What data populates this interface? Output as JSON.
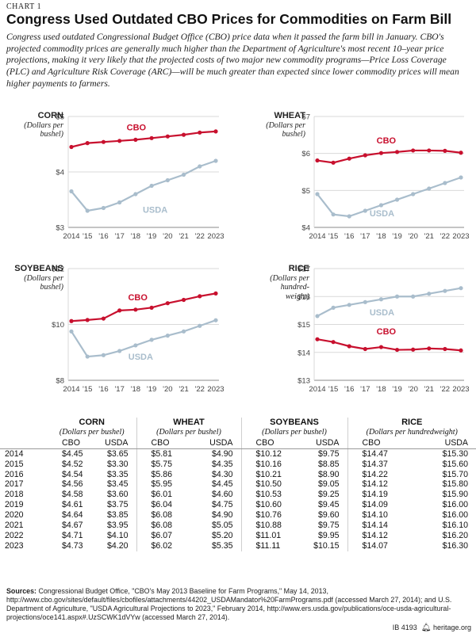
{
  "header": {
    "eyebrow": "CHART 1",
    "title": "Congress Used Outdated CBO Prices for Commodities on Farm Bill",
    "subtitle": "Congress used outdated Congressional Budget Office (CBO) price data when it passed the farm bill in January. CBO's projected commodity prices are generally much higher than the Department of Agriculture's most recent 10–year price projections, making it very likely that the projected costs of two major new commodity programs—Price Loss Coverage (PLC) and Agriculture Risk Coverage (ARC)—will be much greater than expected since lower commodity prices will mean higher payments to farmers."
  },
  "colors": {
    "cbo": "#c8102e",
    "usda": "#a9bdcc",
    "grid": "#d9d9d9",
    "axis": "#888888"
  },
  "chart_data": [
    {
      "type": "line",
      "name": "CORN",
      "unit_lines": [
        "(Dollars per",
        "bushel)"
      ],
      "x": [
        "2014",
        "'15",
        "'16",
        "'17",
        "'18",
        "'19",
        "'20",
        "'21",
        "'22",
        "2023"
      ],
      "ylim": [
        3,
        5
      ],
      "yticks": [
        "$3",
        "$4",
        "$5"
      ],
      "series": [
        {
          "name": "CBO",
          "values": [
            4.45,
            4.52,
            4.54,
            4.56,
            4.58,
            4.61,
            4.64,
            4.67,
            4.71,
            4.73
          ]
        },
        {
          "name": "USDA",
          "values": [
            3.65,
            3.3,
            3.35,
            3.45,
            3.6,
            3.75,
            3.85,
            3.95,
            4.1,
            4.2
          ]
        }
      ],
      "grid": true
    },
    {
      "type": "line",
      "name": "WHEAT",
      "unit_lines": [
        "(Dollars per",
        "bushel)"
      ],
      "x": [
        "2014",
        "'15",
        "'16",
        "'17",
        "'18",
        "'19",
        "'20",
        "'21",
        "'22",
        "2023"
      ],
      "ylim": [
        4,
        7
      ],
      "yticks": [
        "$4",
        "$5",
        "$6",
        "$7"
      ],
      "series": [
        {
          "name": "CBO",
          "values": [
            5.81,
            5.75,
            5.86,
            5.95,
            6.01,
            6.04,
            6.08,
            6.08,
            6.07,
            6.02
          ]
        },
        {
          "name": "USDA",
          "values": [
            4.9,
            4.35,
            4.3,
            4.45,
            4.6,
            4.75,
            4.9,
            5.05,
            5.2,
            5.35
          ]
        }
      ],
      "grid": true
    },
    {
      "type": "line",
      "name": "SOYBEANS",
      "unit_lines": [
        "(Dollars per",
        "bushel)"
      ],
      "x": [
        "2014",
        "'15",
        "'16",
        "'17",
        "'18",
        "'19",
        "'20",
        "'21",
        "'22",
        "2023"
      ],
      "ylim": [
        8,
        12
      ],
      "yticks": [
        "$8",
        "$10",
        "$12"
      ],
      "series": [
        {
          "name": "CBO",
          "values": [
            10.12,
            10.16,
            10.21,
            10.5,
            10.53,
            10.6,
            10.76,
            10.88,
            11.01,
            11.11
          ]
        },
        {
          "name": "USDA",
          "values": [
            9.75,
            8.85,
            8.9,
            9.05,
            9.25,
            9.45,
            9.6,
            9.75,
            9.95,
            10.15
          ]
        }
      ],
      "grid": true
    },
    {
      "type": "line",
      "name": "RICE",
      "unit_lines": [
        "(Dollars per",
        "hundred-",
        "weight)"
      ],
      "x": [
        "2014",
        "'15",
        "'16",
        "'17",
        "'18",
        "'19",
        "'20",
        "'21",
        "'22",
        "2023"
      ],
      "ylim": [
        13,
        17
      ],
      "yticks": [
        "$13",
        "$14",
        "$15",
        "$16",
        "$17"
      ],
      "series": [
        {
          "name": "CBO",
          "values": [
            14.47,
            14.37,
            14.22,
            14.12,
            14.19,
            14.09,
            14.1,
            14.14,
            14.12,
            14.07
          ]
        },
        {
          "name": "USDA",
          "values": [
            15.3,
            15.6,
            15.7,
            15.8,
            15.9,
            16.0,
            16.0,
            16.1,
            16.2,
            16.3
          ]
        }
      ],
      "grid": true
    }
  ],
  "table": {
    "groups": [
      {
        "name": "CORN",
        "unit": "(Dollars per bushel)"
      },
      {
        "name": "WHEAT",
        "unit": "(Dollars per bushel)"
      },
      {
        "name": "SOYBEANS",
        "unit": "(Dollars per bushel)"
      },
      {
        "name": "RICE",
        "unit": "(Dollars per hundredweight)"
      }
    ],
    "col_cbo": "CBO",
    "col_usda": "USDA",
    "rows": [
      [
        "2014",
        "$4.45",
        "$3.65",
        "$5.81",
        "$4.90",
        "$10.12",
        "$9.75",
        "$14.47",
        "$15.30"
      ],
      [
        "2015",
        "$4.52",
        "$3.30",
        "$5.75",
        "$4.35",
        "$10.16",
        "$8.85",
        "$14.37",
        "$15.60"
      ],
      [
        "2016",
        "$4.54",
        "$3.35",
        "$5.86",
        "$4.30",
        "$10.21",
        "$8.90",
        "$14.22",
        "$15.70"
      ],
      [
        "2017",
        "$4.56",
        "$3.45",
        "$5.95",
        "$4.45",
        "$10.50",
        "$9.05",
        "$14.12",
        "$15.80"
      ],
      [
        "2018",
        "$4.58",
        "$3.60",
        "$6.01",
        "$4.60",
        "$10.53",
        "$9.25",
        "$14.19",
        "$15.90"
      ],
      [
        "2019",
        "$4.61",
        "$3.75",
        "$6.04",
        "$4.75",
        "$10.60",
        "$9.45",
        "$14.09",
        "$16.00"
      ],
      [
        "2020",
        "$4.64",
        "$3.85",
        "$6.08",
        "$4.90",
        "$10.76",
        "$9.60",
        "$14.10",
        "$16.00"
      ],
      [
        "2021",
        "$4.67",
        "$3.95",
        "$6.08",
        "$5.05",
        "$10.88",
        "$9.75",
        "$14.14",
        "$16.10"
      ],
      [
        "2022",
        "$4.71",
        "$4.10",
        "$6.07",
        "$5.20",
        "$11.01",
        "$9.95",
        "$14.12",
        "$16.20"
      ],
      [
        "2023",
        "$4.73",
        "$4.20",
        "$6.02",
        "$5.35",
        "$11.11",
        "$10.15",
        "$14.07",
        "$16.30"
      ]
    ]
  },
  "source": {
    "label": "Sources:",
    "text": " Congressional Budget Office, \"CBO's May 2013 Baseline for Farm Programs,\" May 14, 2013, http://www.cbo.gov/sites/default/files/cbofiles/attachments/44202_USDAMandator%20FarmPrograms.pdf (accessed March 27, 2014); and U.S. Department of Agriculture, \"USDA Agricultural Projections to 2023,\" February 2014, http://www.ers.usda.gov/publications/oce-usda-agricultural-projections/oce141.aspx#.UzSCWK1dVYw (accessed March 27, 2014)."
  },
  "footer": {
    "code": "IB 4193",
    "site": "heritage.org",
    "icon": "bell-icon"
  }
}
